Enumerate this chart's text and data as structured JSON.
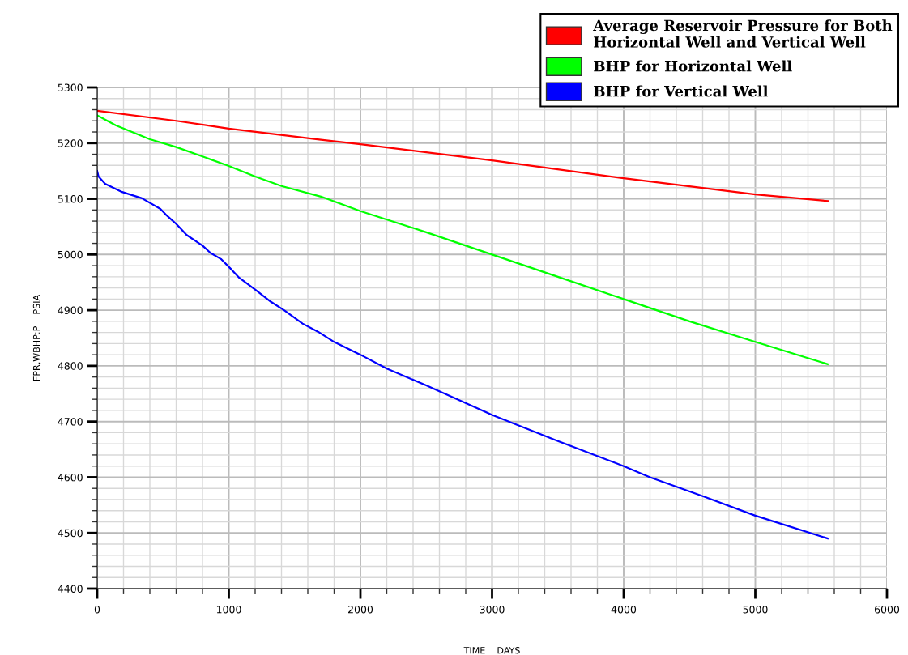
{
  "chart_data": {
    "type": "line",
    "xlabel": "TIME    DAYS",
    "ylabel": "FPR,WBHP:P    PSIA",
    "xlim": [
      0,
      6000
    ],
    "xticks": [
      0,
      1000,
      2000,
      3000,
      4000,
      5000,
      6000
    ],
    "ylim": [
      4400,
      5300
    ],
    "yticks": [
      4400,
      4500,
      4600,
      4700,
      4800,
      4900,
      5000,
      5100,
      5200,
      5300
    ],
    "grid": true,
    "legend": "top right",
    "marker": "none",
    "line_style": "solid",
    "series": [
      {
        "name": "Average Reservoir Pressure for Both Horizontal Well and Vertical Well",
        "color": "#ff0000",
        "x": [
          0,
          600,
          1000,
          1700,
          2000,
          3000,
          4000,
          5000,
          5550
        ],
        "values": [
          5258,
          5240,
          5226,
          5206,
          5198,
          5169,
          5137,
          5108,
          5096
        ]
      },
      {
        "name": "BHP for Horizontal Well",
        "color": "#00ff00",
        "x": [
          0,
          140,
          400,
          600,
          800,
          1000,
          1200,
          1400,
          1700,
          2000,
          2500,
          3000,
          3500,
          4000,
          4500,
          5000,
          5550
        ],
        "values": [
          5250,
          5232,
          5207,
          5193,
          5176,
          5159,
          5140,
          5123,
          5104,
          5078,
          5040,
          5000,
          4960,
          4920,
          4880,
          4843,
          4803
        ]
      },
      {
        "name": "BHP for Vertical Well",
        "color": "#0000ff",
        "x": [
          0,
          10,
          60,
          180,
          340,
          480,
          520,
          600,
          680,
          800,
          860,
          940,
          1020,
          1080,
          1200,
          1320,
          1420,
          1560,
          1680,
          1800,
          2000,
          2200,
          2500,
          3000,
          3500,
          4000,
          4200,
          4600,
          5000,
          5550
        ],
        "values": [
          5150,
          5140,
          5127,
          5113,
          5101,
          5082,
          5072,
          5055,
          5035,
          5016,
          5003,
          4992,
          4973,
          4958,
          4937,
          4915,
          4900,
          4876,
          4861,
          4843,
          4820,
          4795,
          4765,
          4712,
          4665,
          4620,
          4600,
          4566,
          4531,
          4490
        ]
      }
    ]
  }
}
